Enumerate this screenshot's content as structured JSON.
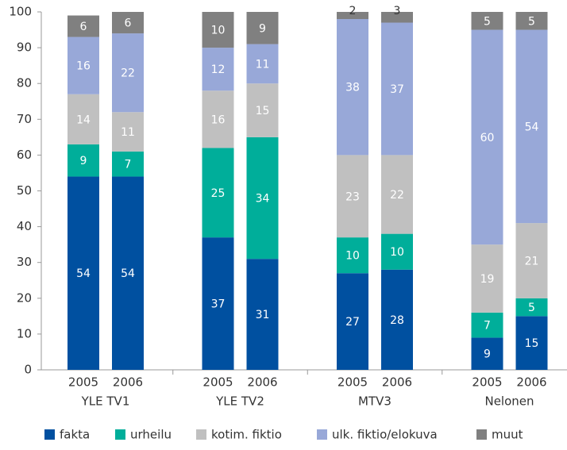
{
  "chart_data": {
    "type": "stacked_bar",
    "groups": [
      "YLE TV1",
      "YLE TV2",
      "MTV3",
      "Nelonen"
    ],
    "categories": [
      "2005",
      "2006",
      "2005",
      "2006",
      "2005",
      "2006",
      "2005",
      "2006"
    ],
    "series": [
      {
        "name": "fakta",
        "color": "#0050a0",
        "values": [
          54,
          54,
          37,
          31,
          27,
          28,
          9,
          15
        ]
      },
      {
        "name": "urheilu",
        "color": "#00ae9a",
        "values": [
          9,
          7,
          25,
          34,
          10,
          10,
          7,
          5
        ]
      },
      {
        "name": "kotim. fiktio",
        "color": "#c0c0c0",
        "values": [
          14,
          11,
          16,
          15,
          23,
          22,
          19,
          21
        ]
      },
      {
        "name": "ulk. fiktio/elokuva",
        "color": "#98a8d8",
        "values": [
          16,
          22,
          12,
          11,
          38,
          37,
          60,
          54
        ]
      },
      {
        "name": "muut",
        "color": "#808080",
        "values": [
          6,
          6,
          10,
          9,
          2,
          3,
          5,
          5
        ]
      }
    ],
    "ylim": [
      0,
      100
    ],
    "yticks": [
      0,
      10,
      20,
      30,
      40,
      50,
      60,
      70,
      80,
      90,
      100
    ],
    "grid": false,
    "legend": "bottom"
  }
}
